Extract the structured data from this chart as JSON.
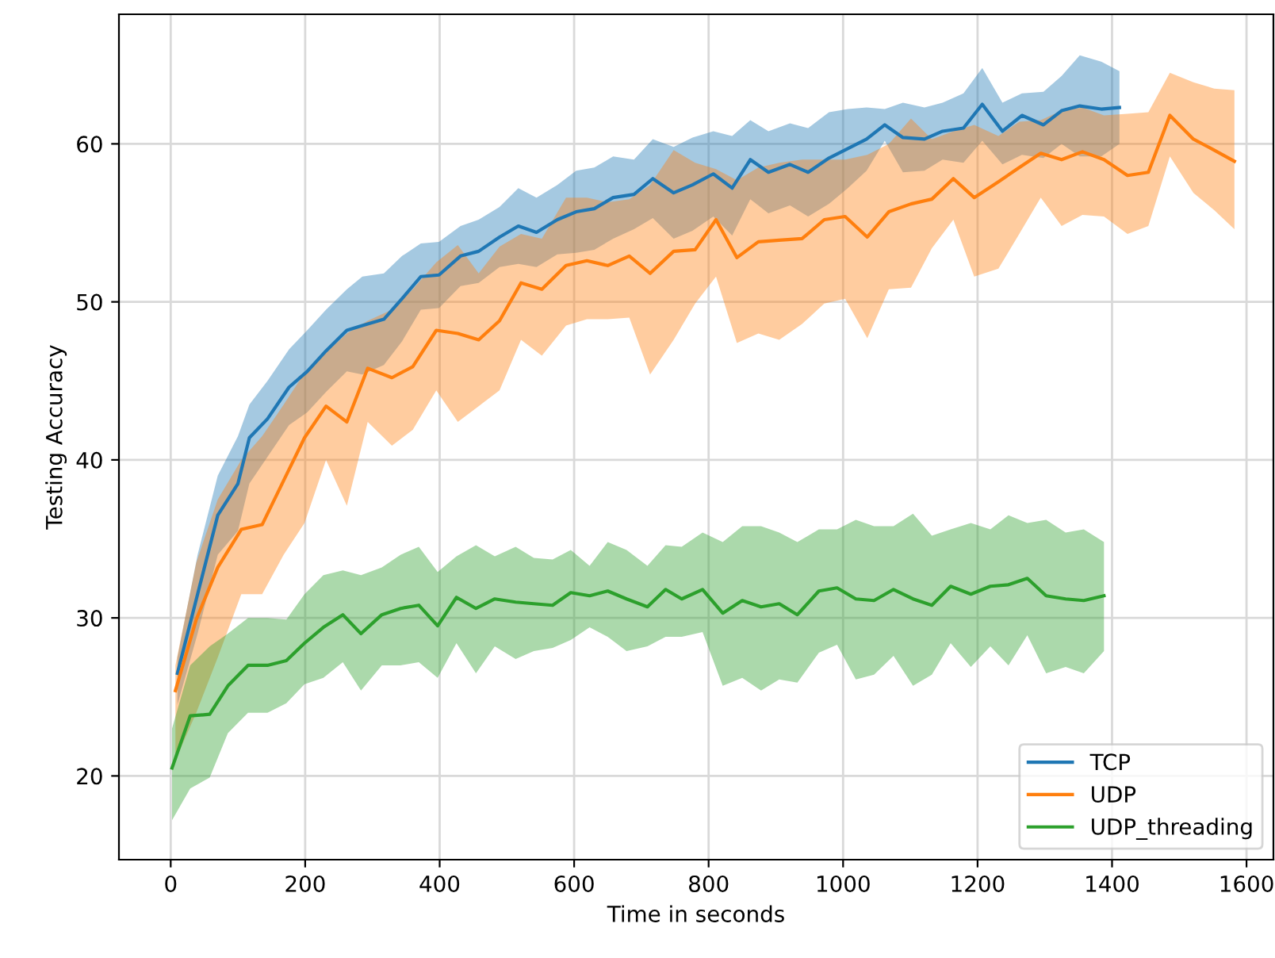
{
  "chart_data": {
    "type": "line",
    "xlabel": "Time in seconds",
    "ylabel": "Testing Accuracy",
    "xlim": [
      -77,
      1640
    ],
    "ylim": [
      14.7,
      68.2
    ],
    "xticks": [
      0,
      200,
      400,
      600,
      800,
      1000,
      1200,
      1400,
      1600
    ],
    "yticks": [
      20,
      30,
      40,
      50,
      60
    ],
    "grid": true,
    "legend": "bottom right",
    "series": [
      {
        "name": "TCP",
        "color": "#1f77b4",
        "x": [
          10,
          40,
          70,
          100,
          117,
          144,
          176,
          203,
          231,
          262,
          285,
          317,
          344,
          372,
          399,
          431,
          458,
          489,
          517,
          544,
          575,
          603,
          630,
          658,
          689,
          717,
          748,
          776,
          807,
          835,
          862,
          889,
          921,
          948,
          979,
          1007,
          1035,
          1062,
          1089,
          1121,
          1148,
          1179,
          1207,
          1237,
          1266,
          1298,
          1325,
          1352,
          1384,
          1411
        ],
        "values": [
          26.5,
          31.5,
          36.5,
          38.5,
          41.4,
          42.6,
          44.6,
          45.6,
          46.9,
          48.2,
          48.5,
          48.9,
          50.2,
          51.6,
          51.7,
          52.9,
          53.2,
          54.1,
          54.8,
          54.4,
          55.2,
          55.7,
          55.9,
          56.6,
          56.8,
          57.8,
          56.9,
          57.4,
          58.1,
          57.2,
          59,
          58.2,
          58.7,
          58.2,
          59.1,
          59.7,
          60.3,
          61.2,
          60.4,
          60.3,
          60.8,
          61,
          62.5,
          60.8,
          61.8,
          61.2,
          62.1,
          62.4,
          62.2,
          62.3
        ],
        "upper": [
          27.5,
          34,
          39,
          41.5,
          43.5,
          45,
          47,
          48.2,
          49.5,
          50.8,
          51.6,
          51.8,
          52.9,
          53.7,
          53.8,
          54.8,
          55.2,
          56,
          57.2,
          56.6,
          57.4,
          58.3,
          58.5,
          59.2,
          59,
          60.3,
          59.8,
          60.4,
          60.8,
          60.5,
          61.5,
          60.8,
          61.3,
          61,
          62,
          62.2,
          62.3,
          62.2,
          62.6,
          62.3,
          62.6,
          63.2,
          64.8,
          62.6,
          63.2,
          63.3,
          64.3,
          65.6,
          65.2,
          64.6
        ],
        "lower": [
          24.5,
          29,
          34,
          35.5,
          38.5,
          40.2,
          42.2,
          43,
          44.3,
          45.6,
          45.4,
          46,
          47.5,
          49.5,
          49.6,
          51,
          51.2,
          52.2,
          52.4,
          52.2,
          53,
          53.1,
          53.3,
          54,
          54.6,
          55.3,
          54,
          54.5,
          55.4,
          54.2,
          56.5,
          55.6,
          56.1,
          55.4,
          56.2,
          57.2,
          58.3,
          60.2,
          58.2,
          58.3,
          59,
          58.8,
          60.2,
          58.7,
          59.3,
          59.1,
          60,
          59.2,
          59.2,
          60
        ]
      },
      {
        "name": "UDP",
        "color": "#ff7f0e",
        "x": [
          7,
          38,
          70,
          105,
          136,
          168,
          199,
          231,
          262,
          293,
          329,
          360,
          395,
          427,
          458,
          489,
          521,
          552,
          588,
          619,
          650,
          682,
          713,
          748,
          780,
          811,
          842,
          874,
          905,
          939,
          972,
          1003,
          1036,
          1068,
          1101,
          1132,
          1164,
          1195,
          1231,
          1262,
          1294,
          1325,
          1356,
          1388,
          1423,
          1454,
          1486,
          1521,
          1552,
          1582
        ],
        "values": [
          25.4,
          29.9,
          33.2,
          35.6,
          35.9,
          38.7,
          41.4,
          43.4,
          42.4,
          45.8,
          45.2,
          45.9,
          48.2,
          48,
          47.6,
          48.8,
          51.2,
          50.8,
          52.3,
          52.6,
          52.3,
          52.9,
          51.8,
          53.2,
          53.3,
          55.2,
          52.8,
          53.8,
          53.9,
          54,
          55.2,
          55.4,
          54.1,
          55.7,
          56.2,
          56.5,
          57.8,
          56.6,
          57.6,
          58.5,
          59.4,
          59,
          59.5,
          59,
          58,
          58.2,
          61.8,
          60.3,
          59.6,
          58.9
        ],
        "upper": [
          27,
          33.5,
          37.5,
          40,
          41.5,
          43.5,
          45.5,
          46.8,
          48,
          48.8,
          49.5,
          50.8,
          52.5,
          53.6,
          51.8,
          53.5,
          54.3,
          54,
          56.6,
          56.6,
          56.3,
          56.5,
          57.4,
          59.6,
          58.8,
          58.4,
          57.7,
          58.5,
          58.8,
          59,
          59,
          59,
          59.3,
          60,
          61.6,
          60.3,
          60.8,
          61.2,
          60.5,
          61.4,
          61.5,
          62.1,
          62.3,
          61.8,
          61.9,
          62,
          64.5,
          63.9,
          63.5,
          63.4
        ],
        "lower": [
          21,
          24,
          27.5,
          31.5,
          31.5,
          34,
          36,
          40,
          37.1,
          42.4,
          40.9,
          41.9,
          44.4,
          42.4,
          43.4,
          44.4,
          47.6,
          46.6,
          48.5,
          48.9,
          48.9,
          49,
          45.4,
          47.6,
          49.9,
          51.6,
          47.4,
          48,
          47.6,
          48.6,
          49.9,
          50.2,
          47.7,
          50.8,
          50.9,
          53.4,
          55.2,
          51.6,
          52.1,
          54.3,
          56.6,
          54.8,
          55.5,
          55.4,
          54.3,
          54.8,
          59.2,
          56.9,
          55.8,
          54.6
        ]
      },
      {
        "name": "UDP_threading",
        "color": "#2ca02c",
        "x": [
          2,
          29,
          58,
          85,
          115,
          144,
          172,
          199,
          227,
          256,
          283,
          314,
          342,
          369,
          397,
          425,
          454,
          482,
          513,
          540,
          568,
          595,
          623,
          650,
          678,
          709,
          736,
          760,
          791,
          821,
          850,
          878,
          905,
          932,
          964,
          991,
          1019,
          1046,
          1075,
          1104,
          1132,
          1160,
          1190,
          1219,
          1246,
          1274,
          1302,
          1331,
          1358,
          1388
        ],
        "values": [
          20.5,
          23.8,
          23.9,
          25.7,
          27,
          27,
          27.3,
          28.4,
          29.4,
          30.2,
          29,
          30.2,
          30.6,
          30.8,
          29.5,
          31.3,
          30.6,
          31.2,
          31,
          30.9,
          30.8,
          31.6,
          31.4,
          31.7,
          31.2,
          30.7,
          31.8,
          31.2,
          31.8,
          30.3,
          31.1,
          30.7,
          30.9,
          30.2,
          31.7,
          31.9,
          31.2,
          31.1,
          31.8,
          31.2,
          30.8,
          32,
          31.5,
          32,
          32.1,
          32.5,
          31.4,
          31.2,
          31.1,
          31.4
        ],
        "upper": [
          23,
          27,
          28.2,
          29,
          30,
          30,
          29.9,
          31.5,
          32.7,
          33,
          32.7,
          33.2,
          34,
          34.5,
          32.9,
          33.9,
          34.6,
          33.9,
          34.5,
          33.8,
          33.7,
          34.3,
          33.3,
          34.8,
          34.3,
          33.3,
          34.6,
          34.5,
          35.4,
          34.8,
          35.8,
          35.8,
          35.4,
          34.8,
          35.6,
          35.6,
          36.2,
          35.8,
          35.8,
          36.6,
          35.2,
          35.6,
          36,
          35.6,
          36.5,
          36,
          36.2,
          35.4,
          35.6,
          34.8
        ],
        "lower": [
          17.2,
          19.2,
          19.9,
          22.7,
          24,
          24,
          24.6,
          25.8,
          26.2,
          27.2,
          25.4,
          27,
          27,
          27.2,
          26.2,
          28.4,
          26.5,
          28.2,
          27.4,
          27.9,
          28.1,
          28.6,
          29.4,
          28.8,
          27.9,
          28.2,
          28.8,
          28.8,
          29.1,
          25.7,
          26.2,
          25.4,
          26.1,
          25.9,
          27.8,
          28.3,
          26.1,
          26.4,
          27.6,
          25.7,
          26.4,
          28.4,
          26.9,
          28.2,
          27,
          28.9,
          26.5,
          26.9,
          26.5,
          27.9
        ]
      }
    ]
  }
}
